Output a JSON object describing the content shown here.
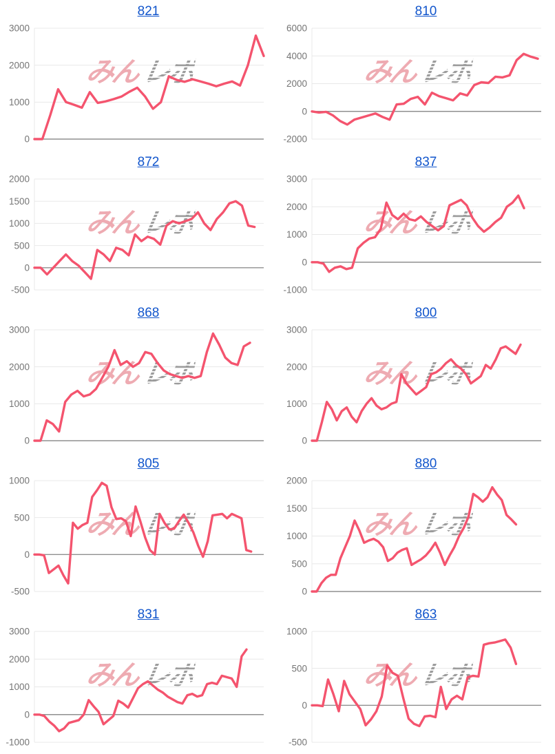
{
  "colors": {
    "background": "#ffffff",
    "line": "#f4546e",
    "link": "#1155cc",
    "grid_line": "#e8e8e8",
    "zero_line": "#8f8f8f",
    "tick_label": "#757575",
    "watermark_pink": "#e9939c",
    "watermark_gray": "#9c9c9c"
  },
  "watermark": {
    "pink_text": "みん",
    "gray_text": "レポ"
  },
  "chart_data": [
    {
      "type": "line",
      "title": "821",
      "ylim": [
        0,
        3000
      ],
      "yticks": [
        0,
        1000,
        2000,
        3000
      ],
      "x_end": 1.0,
      "values": [
        0,
        0,
        650,
        1350,
        1000,
        930,
        850,
        1270,
        980,
        1020,
        1080,
        1150,
        1280,
        1390,
        1150,
        820,
        1000,
        1700,
        1600,
        1550,
        1620,
        1560,
        1500,
        1430,
        1500,
        1560,
        1450,
        2000,
        2800,
        2250
      ]
    },
    {
      "type": "line",
      "title": "810",
      "ylim": [
        -2000,
        6000
      ],
      "yticks": [
        -2000,
        0,
        2000,
        4000,
        6000
      ],
      "x_end": 0.985,
      "values": [
        0,
        -80,
        -30,
        -300,
        -700,
        -950,
        -600,
        -450,
        -300,
        -150,
        -400,
        -600,
        500,
        550,
        900,
        1050,
        500,
        1350,
        1100,
        950,
        800,
        1300,
        1150,
        1900,
        2100,
        2050,
        2500,
        2450,
        2600,
        3700,
        4150,
        3950,
        3800
      ]
    },
    {
      "type": "line",
      "title": "872",
      "ylim": [
        -500,
        2000
      ],
      "yticks": [
        -500,
        0,
        500,
        1000,
        1500,
        2000
      ],
      "x_end": 0.96,
      "values": [
        0,
        0,
        -150,
        0,
        150,
        300,
        150,
        50,
        -100,
        -250,
        400,
        300,
        150,
        450,
        400,
        280,
        750,
        600,
        700,
        650,
        520,
        950,
        1050,
        1000,
        1050,
        1100,
        1250,
        1000,
        850,
        1100,
        1250,
        1450,
        1500,
        1400,
        950,
        920
      ]
    },
    {
      "type": "line",
      "title": "837",
      "ylim": [
        -1000,
        3000
      ],
      "yticks": [
        -1000,
        0,
        1000,
        2000,
        3000
      ],
      "x_end": 0.925,
      "values": [
        0,
        0,
        -50,
        -350,
        -200,
        -150,
        -250,
        -200,
        500,
        700,
        850,
        900,
        1200,
        2150,
        1700,
        1550,
        1750,
        1550,
        1500,
        1650,
        1450,
        1300,
        1150,
        1300,
        2050,
        2150,
        2250,
        2050,
        1600,
        1300,
        1100,
        1250,
        1450,
        1600,
        2000,
        2150,
        2400,
        1950
      ]
    },
    {
      "type": "line",
      "title": "868",
      "ylim": [
        0,
        3000
      ],
      "yticks": [
        0,
        1000,
        2000,
        3000
      ],
      "x_end": 0.94,
      "values": [
        0,
        0,
        550,
        450,
        250,
        1050,
        1250,
        1350,
        1200,
        1250,
        1400,
        1700,
        2000,
        2450,
        2050,
        2150,
        2000,
        2100,
        2400,
        2350,
        2100,
        1900,
        1800,
        1750,
        1700,
        1750,
        1700,
        1750,
        2400,
        2900,
        2600,
        2250,
        2100,
        2050,
        2550,
        2650
      ]
    },
    {
      "type": "line",
      "title": "800",
      "ylim": [
        0,
        3000
      ],
      "yticks": [
        0,
        1000,
        2000,
        3000
      ],
      "x_end": 0.91,
      "values": [
        0,
        0,
        500,
        1050,
        850,
        550,
        800,
        900,
        650,
        500,
        800,
        1000,
        1150,
        950,
        850,
        900,
        1000,
        1050,
        1800,
        1550,
        1400,
        1250,
        1350,
        1450,
        1800,
        1850,
        1950,
        2100,
        2200,
        2050,
        1950,
        1800,
        1550,
        1650,
        1750,
        2050,
        1950,
        2200,
        2500,
        2550,
        2450,
        2350,
        2600
      ]
    },
    {
      "type": "line",
      "title": "805",
      "ylim": [
        -500,
        1000
      ],
      "yticks": [
        -500,
        0,
        500,
        1000
      ],
      "x_end": 0.945,
      "values": [
        0,
        0,
        -10,
        -250,
        -200,
        -150,
        -280,
        -390,
        430,
        350,
        400,
        430,
        780,
        870,
        970,
        930,
        640,
        480,
        490,
        450,
        250,
        650,
        450,
        230,
        60,
        0,
        550,
        430,
        340,
        350,
        450,
        540,
        430,
        300,
        120,
        -30,
        180,
        530,
        540,
        550,
        490,
        550,
        520,
        490,
        60,
        40
      ]
    },
    {
      "type": "line",
      "title": "880",
      "ylim": [
        0,
        2000
      ],
      "yticks": [
        0,
        500,
        1000,
        1500,
        2000
      ],
      "x_end": 0.89,
      "values": [
        0,
        0,
        150,
        250,
        300,
        300,
        600,
        800,
        1000,
        1280,
        1100,
        880,
        920,
        950,
        900,
        800,
        550,
        600,
        700,
        750,
        780,
        480,
        530,
        580,
        650,
        750,
        880,
        700,
        480,
        650,
        800,
        1000,
        1150,
        1350,
        1760,
        1700,
        1620,
        1700,
        1880,
        1750,
        1650,
        1380,
        1300,
        1210
      ]
    },
    {
      "type": "line",
      "title": "831",
      "ylim": [
        -1000,
        3000
      ],
      "yticks": [
        -1000,
        0,
        1000,
        2000,
        3000
      ],
      "x_end": 0.925,
      "values": [
        0,
        0,
        -50,
        -250,
        -400,
        -600,
        -500,
        -300,
        -250,
        -200,
        0,
        520,
        300,
        100,
        -350,
        -200,
        -50,
        500,
        400,
        250,
        600,
        950,
        1100,
        1200,
        1050,
        900,
        800,
        650,
        550,
        450,
        400,
        700,
        750,
        650,
        700,
        1100,
        1150,
        1100,
        1400,
        1350,
        1300,
        1000,
        2100,
        2350
      ]
    },
    {
      "type": "line",
      "title": "863",
      "ylim": [
        -500,
        1000
      ],
      "yticks": [
        -500,
        0,
        500,
        1000
      ],
      "x_end": 0.89,
      "values": [
        0,
        0,
        -10,
        350,
        150,
        -80,
        330,
        150,
        50,
        -50,
        -270,
        -190,
        -80,
        120,
        540,
        440,
        400,
        100,
        -180,
        -250,
        -280,
        -150,
        -140,
        -160,
        250,
        -50,
        80,
        130,
        80,
        380,
        400,
        390,
        820,
        840,
        850,
        870,
        890,
        780,
        560
      ]
    }
  ]
}
